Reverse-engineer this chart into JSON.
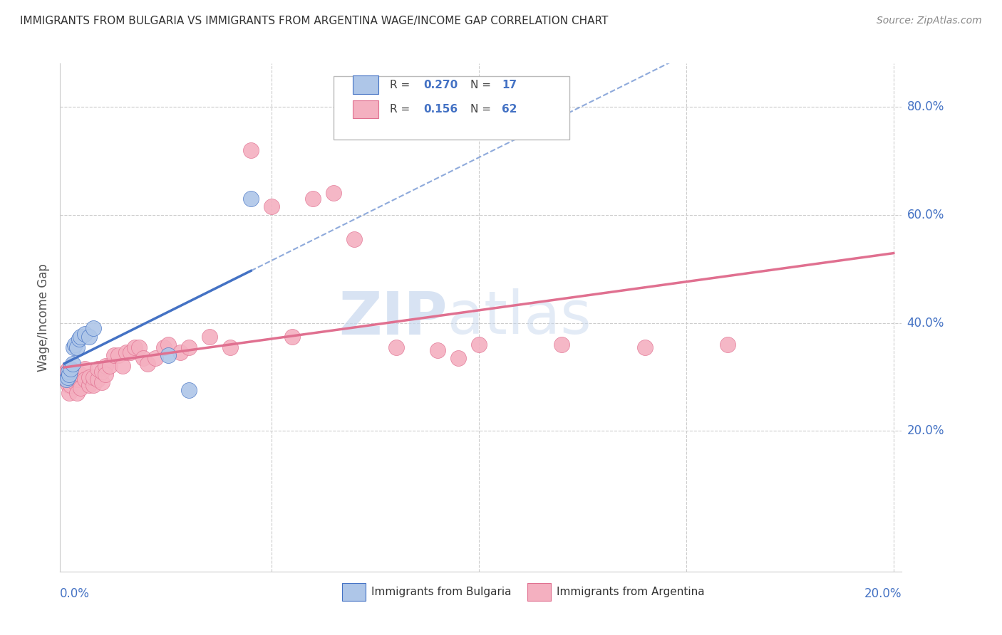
{
  "title": "IMMIGRANTS FROM BULGARIA VS IMMIGRANTS FROM ARGENTINA WAGE/INCOME GAP CORRELATION CHART",
  "source": "Source: ZipAtlas.com",
  "ylabel": "Wage/Income Gap",
  "color_bulgaria": "#aec6e8",
  "color_argentina": "#f4b0c0",
  "line_bulgaria_color": "#4472c4",
  "line_argentina_color": "#e07090",
  "title_color": "#333333",
  "axis_label_color": "#4472c4",
  "xlim": [
    -0.001,
    0.202
  ],
  "ylim": [
    -0.06,
    0.88
  ],
  "ytick_vals": [
    0.2,
    0.4,
    0.6,
    0.8
  ],
  "ytick_labels": [
    "20.0%",
    "40.0%",
    "60.0%",
    "80.0%"
  ],
  "xtick_labels": [
    "0.0%",
    "20.0%"
  ],
  "bul_x": [
    0.0005,
    0.0008,
    0.001,
    0.0012,
    0.0015,
    0.002,
    0.0022,
    0.0025,
    0.003,
    0.0035,
    0.004,
    0.005,
    0.006,
    0.007,
    0.025,
    0.03,
    0.045
  ],
  "bul_y": [
    0.295,
    0.3,
    0.31,
    0.305,
    0.315,
    0.325,
    0.355,
    0.36,
    0.355,
    0.37,
    0.375,
    0.38,
    0.375,
    0.39,
    0.34,
    0.275,
    0.63
  ],
  "arg_x": [
    0.0003,
    0.0005,
    0.0007,
    0.001,
    0.001,
    0.001,
    0.0012,
    0.0015,
    0.0015,
    0.002,
    0.002,
    0.0022,
    0.0025,
    0.0025,
    0.003,
    0.003,
    0.003,
    0.0035,
    0.004,
    0.004,
    0.005,
    0.005,
    0.006,
    0.006,
    0.007,
    0.007,
    0.008,
    0.008,
    0.009,
    0.009,
    0.01,
    0.01,
    0.011,
    0.012,
    0.013,
    0.014,
    0.015,
    0.016,
    0.017,
    0.018,
    0.019,
    0.02,
    0.022,
    0.024,
    0.025,
    0.028,
    0.03,
    0.035,
    0.04,
    0.045,
    0.05,
    0.055,
    0.06,
    0.065,
    0.07,
    0.08,
    0.09,
    0.095,
    0.1,
    0.12,
    0.14,
    0.16
  ],
  "arg_y": [
    0.295,
    0.31,
    0.295,
    0.285,
    0.3,
    0.315,
    0.27,
    0.285,
    0.305,
    0.295,
    0.31,
    0.31,
    0.29,
    0.305,
    0.27,
    0.295,
    0.31,
    0.295,
    0.28,
    0.305,
    0.315,
    0.295,
    0.285,
    0.3,
    0.285,
    0.3,
    0.295,
    0.315,
    0.29,
    0.31,
    0.32,
    0.305,
    0.32,
    0.34,
    0.34,
    0.32,
    0.345,
    0.345,
    0.355,
    0.355,
    0.335,
    0.325,
    0.335,
    0.355,
    0.36,
    0.345,
    0.355,
    0.375,
    0.355,
    0.72,
    0.615,
    0.375,
    0.63,
    0.64,
    0.555,
    0.355,
    0.35,
    0.335,
    0.36,
    0.36,
    0.355,
    0.36
  ],
  "watermark_zip_color": "#c8d8ee",
  "watermark_atlas_color": "#c8d8ee"
}
